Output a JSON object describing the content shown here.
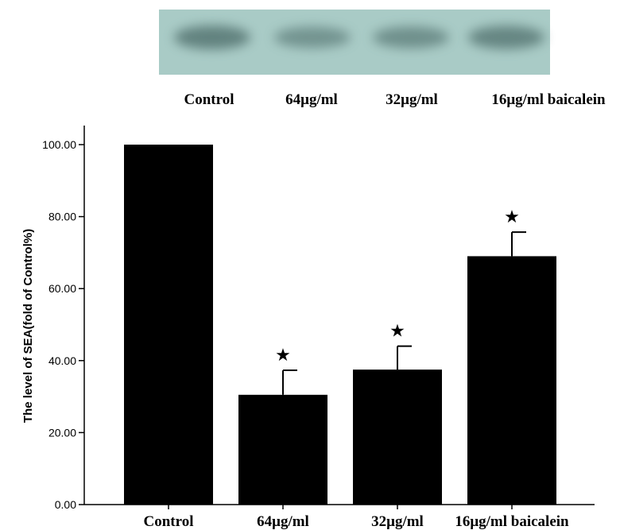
{
  "chart_data": {
    "type": "bar",
    "categories": [
      "Control",
      "64μg/ml",
      "32μg/ml",
      "16μg/ml baicalein"
    ],
    "values": [
      100.0,
      30.5,
      37.5,
      69.0
    ],
    "errors": [
      0,
      6.8,
      6.5,
      6.7
    ],
    "significant": [
      "",
      "★",
      "★",
      "★"
    ],
    "ylabel": "The level of SEA(fold of Control%)",
    "xlabel": "",
    "ylim": [
      0,
      100
    ],
    "yticks": [
      "0.00",
      "20.00",
      "40.00",
      "60.00",
      "80.00",
      "100.00"
    ],
    "bar_color": "#000000",
    "grid": false
  },
  "blot": {
    "labels": [
      "Control",
      "64μg/ml",
      "32μg/ml",
      "16μg/ml baicalein"
    ],
    "background_color": "#a9cbc6",
    "band_color": "#5f7f7c",
    "band_intensity": [
      1.0,
      0.55,
      0.65,
      0.9
    ]
  }
}
